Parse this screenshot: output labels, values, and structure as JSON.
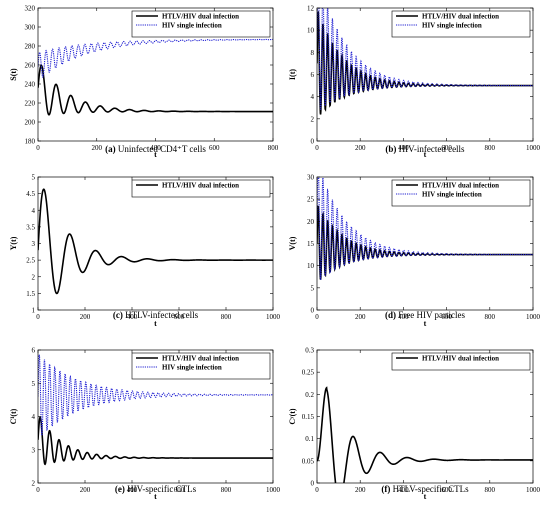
{
  "colors": {
    "dual": "#000000",
    "single": "#1f1fd2",
    "axis": "#000000"
  },
  "chart_data": [
    {
      "type": "line",
      "caption_letter": "(a)",
      "caption_text": "Uninfected CD4⁺T cells",
      "xlabel": "t",
      "ylabel": "S(t)",
      "xlim": [
        0,
        800
      ],
      "ylim": [
        180,
        320
      ],
      "xticks": [
        0,
        200,
        400,
        600,
        800
      ],
      "yticks": [
        180,
        200,
        220,
        240,
        260,
        280,
        300,
        320
      ],
      "legend": [
        "HTLV/HIV dual infection",
        "HIV single infection"
      ],
      "legend_position": "top-right",
      "series": [
        {
          "name": "HTLV/HIV dual infection",
          "style": "solid",
          "start": 236,
          "steady": 211,
          "amp": 30,
          "decay": 95,
          "period": 50
        },
        {
          "name": "HIV single infection",
          "style": "dotted",
          "start": 258,
          "steady": 287,
          "amp": 15,
          "decay": 160,
          "period": 22
        }
      ]
    },
    {
      "type": "line",
      "caption_letter": "(b)",
      "caption_text": "HIV-infected cells",
      "xlabel": "t",
      "ylabel": "I(t)",
      "xlim": [
        0,
        1000
      ],
      "ylim": [
        0,
        12
      ],
      "xticks": [
        0,
        200,
        400,
        600,
        800,
        1000
      ],
      "yticks": [
        0,
        2,
        4,
        6,
        8,
        10,
        12
      ],
      "legend": [
        "HTLV/HIV dual infection",
        "HIV single infection"
      ],
      "legend_position": "top-right",
      "series": [
        {
          "name": "HTLV/HIV dual infection",
          "style": "solid",
          "start": 7,
          "steady": 5,
          "amp": 5,
          "decay": 120,
          "period": 22
        },
        {
          "name": "HIV single infection",
          "style": "dotted",
          "start": 9,
          "steady": 5,
          "amp": 6.5,
          "decay": 130,
          "period": 22
        }
      ]
    },
    {
      "type": "line",
      "caption_letter": "(c)",
      "caption_text": "HTLV-infected cells",
      "xlabel": "t",
      "ylabel": "Y(t)",
      "xlim": [
        0,
        1000
      ],
      "ylim": [
        1,
        5
      ],
      "xticks": [
        0,
        200,
        400,
        600,
        800,
        1000
      ],
      "yticks": [
        1,
        1.5,
        2,
        2.5,
        3,
        3.5,
        4,
        4.5,
        5
      ],
      "legend": [
        "HTLV/HIV dual infection"
      ],
      "legend_position": "top-right",
      "series": [
        {
          "name": "HTLV/HIV dual infection",
          "style": "solid",
          "start": 2.8,
          "steady": 2.5,
          "amp": 2.4,
          "decay": 110,
          "period": 110
        }
      ]
    },
    {
      "type": "line",
      "caption_letter": "(d)",
      "caption_text": "Free HIV particles",
      "xlabel": "t",
      "ylabel": "V(t)",
      "xlim": [
        0,
        1000
      ],
      "ylim": [
        0,
        30
      ],
      "xticks": [
        0,
        200,
        400,
        600,
        800,
        1000
      ],
      "yticks": [
        0,
        5,
        10,
        15,
        20,
        25,
        30
      ],
      "legend": [
        "HTLV/HIV dual infection",
        "HIV single infection"
      ],
      "legend_position": "top-right",
      "series": [
        {
          "name": "HTLV/HIV dual infection",
          "style": "solid",
          "start": 15,
          "steady": 12.5,
          "amp": 9,
          "decay": 120,
          "period": 22
        },
        {
          "name": "HIV single infection",
          "style": "dotted",
          "start": 20,
          "steady": 12.5,
          "amp": 14,
          "decay": 130,
          "period": 22
        }
      ]
    },
    {
      "type": "line",
      "caption_letter": "(e)",
      "caption_text": "HIV-specific CTLs",
      "xlabel": "t",
      "ylabel": "Cᴵ(t)",
      "xlim": [
        0,
        1000
      ],
      "ylim": [
        2,
        6
      ],
      "xticks": [
        0,
        200,
        400,
        600,
        800,
        1000
      ],
      "yticks": [
        2,
        3,
        4,
        5,
        6
      ],
      "legend": [
        "HTLV/HIV dual infection",
        "HIV single infection"
      ],
      "legend_position": "top-right",
      "series": [
        {
          "name": "HTLV/HIV dual infection",
          "style": "solid",
          "start": 3.3,
          "steady": 2.75,
          "amp": 0.8,
          "decay": 100,
          "period": 40
        },
        {
          "name": "HIV single infection",
          "style": "dotted",
          "start": 4.6,
          "steady": 4.65,
          "amp": 1.3,
          "decay": 170,
          "period": 22
        }
      ]
    },
    {
      "type": "line",
      "caption_letter": "(f)",
      "caption_text": "HTLV-specific CTLs",
      "xlabel": "t",
      "ylabel": "Cʸ(t)",
      "xlim": [
        0,
        1000
      ],
      "ylim": [
        0,
        0.3
      ],
      "xticks": [
        0,
        200,
        400,
        600,
        800,
        1000
      ],
      "yticks": [
        0,
        0.05,
        0.1,
        0.15,
        0.2,
        0.25,
        0.3
      ],
      "legend": [
        "HTLV/HIV dual infection"
      ],
      "legend_position": "top-right",
      "series": [
        {
          "name": "HTLV/HIV dual infection",
          "style": "solid",
          "start": 0.05,
          "steady": 0.052,
          "amp": 0.245,
          "decay": 110,
          "period": 125,
          "phase": 45
        }
      ]
    }
  ]
}
